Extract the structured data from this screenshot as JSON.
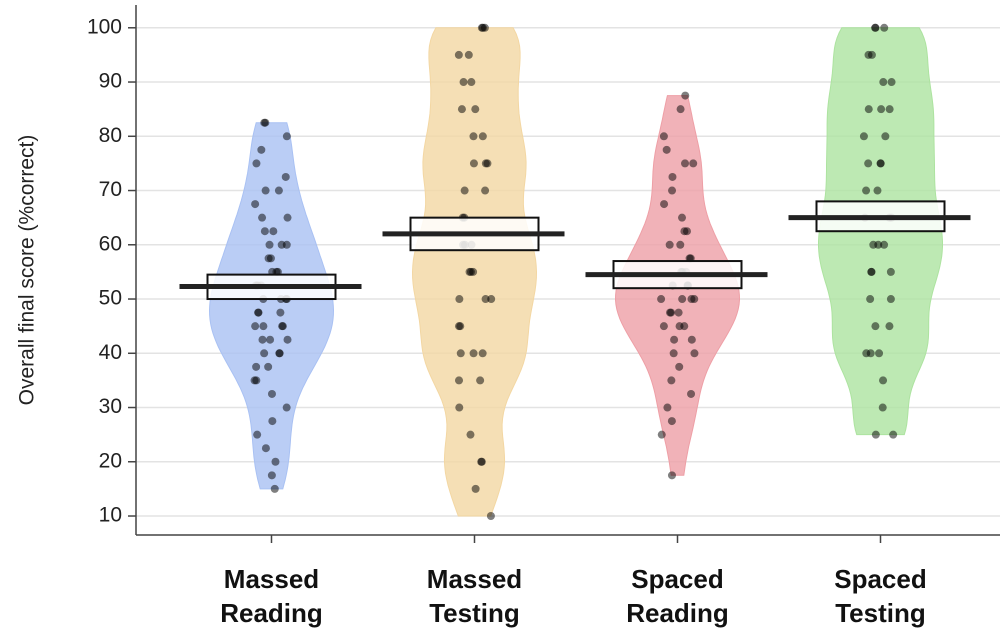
{
  "chart_data": {
    "type": "pirate",
    "y_label": "Overall final score (%correct)",
    "ylim": [
      6.5,
      104.2
    ],
    "yticks": [
      10,
      20,
      30,
      40,
      50,
      60,
      70,
      80,
      90,
      100
    ],
    "grid": true,
    "categories": [
      "Massed Reading",
      "Massed Testing",
      "Spaced Reading",
      "Spaced Testing"
    ],
    "series": [
      {
        "name": "Massed Reading",
        "color": "#a9c1f3",
        "mean": 52.3,
        "ci": [
          50,
          54.5
        ],
        "points": [
          15,
          17.5,
          20,
          22.5,
          25,
          27.5,
          30,
          32.5,
          35,
          35,
          37.5,
          37.5,
          40,
          40,
          40,
          42.5,
          42.5,
          42.5,
          45,
          45,
          45,
          45,
          47.5,
          47.5,
          47.5,
          50,
          50,
          50,
          50,
          52.5,
          52.5,
          52.5,
          55,
          55,
          55,
          57.5,
          57.5,
          60,
          60,
          60,
          62.5,
          62.5,
          65,
          65,
          67.5,
          70,
          70,
          72.5,
          75,
          77.5,
          80,
          82.5,
          82.5
        ]
      },
      {
        "name": "Massed Testing",
        "color": "#f3d7a3",
        "mean": 62,
        "ci": [
          59,
          65
        ],
        "points": [
          10,
          15,
          20,
          20,
          25,
          30,
          35,
          35,
          40,
          40,
          40,
          45,
          45,
          50,
          50,
          50,
          55,
          55,
          55,
          60,
          60,
          60,
          65,
          65,
          70,
          70,
          75,
          75,
          75,
          80,
          80,
          85,
          85,
          90,
          90,
          95,
          95,
          100,
          100,
          100
        ]
      },
      {
        "name": "Spaced Reading",
        "color": "#ee9fa6",
        "mean": 54.5,
        "ci": [
          52,
          57
        ],
        "points": [
          17.5,
          25,
          27.5,
          30,
          32.5,
          35,
          37.5,
          40,
          40,
          42.5,
          42.5,
          45,
          45,
          45,
          47.5,
          47.5,
          47.5,
          50,
          50,
          50,
          50,
          52.5,
          52.5,
          52.5,
          55,
          55,
          55,
          57.5,
          57.5,
          60,
          60,
          62.5,
          62.5,
          65,
          67.5,
          70,
          72.5,
          75,
          75,
          77.5,
          80,
          85,
          87.5
        ]
      },
      {
        "name": "Spaced Testing",
        "color": "#ade3a0",
        "mean": 65,
        "ci": [
          62.5,
          68
        ],
        "points": [
          25,
          25,
          30,
          35,
          40,
          40,
          40,
          45,
          45,
          50,
          50,
          55,
          55,
          55,
          60,
          60,
          60,
          65,
          65,
          65,
          70,
          70,
          75,
          75,
          75,
          80,
          80,
          85,
          85,
          85,
          90,
          90,
          95,
          95,
          100,
          100,
          100
        ]
      }
    ]
  }
}
